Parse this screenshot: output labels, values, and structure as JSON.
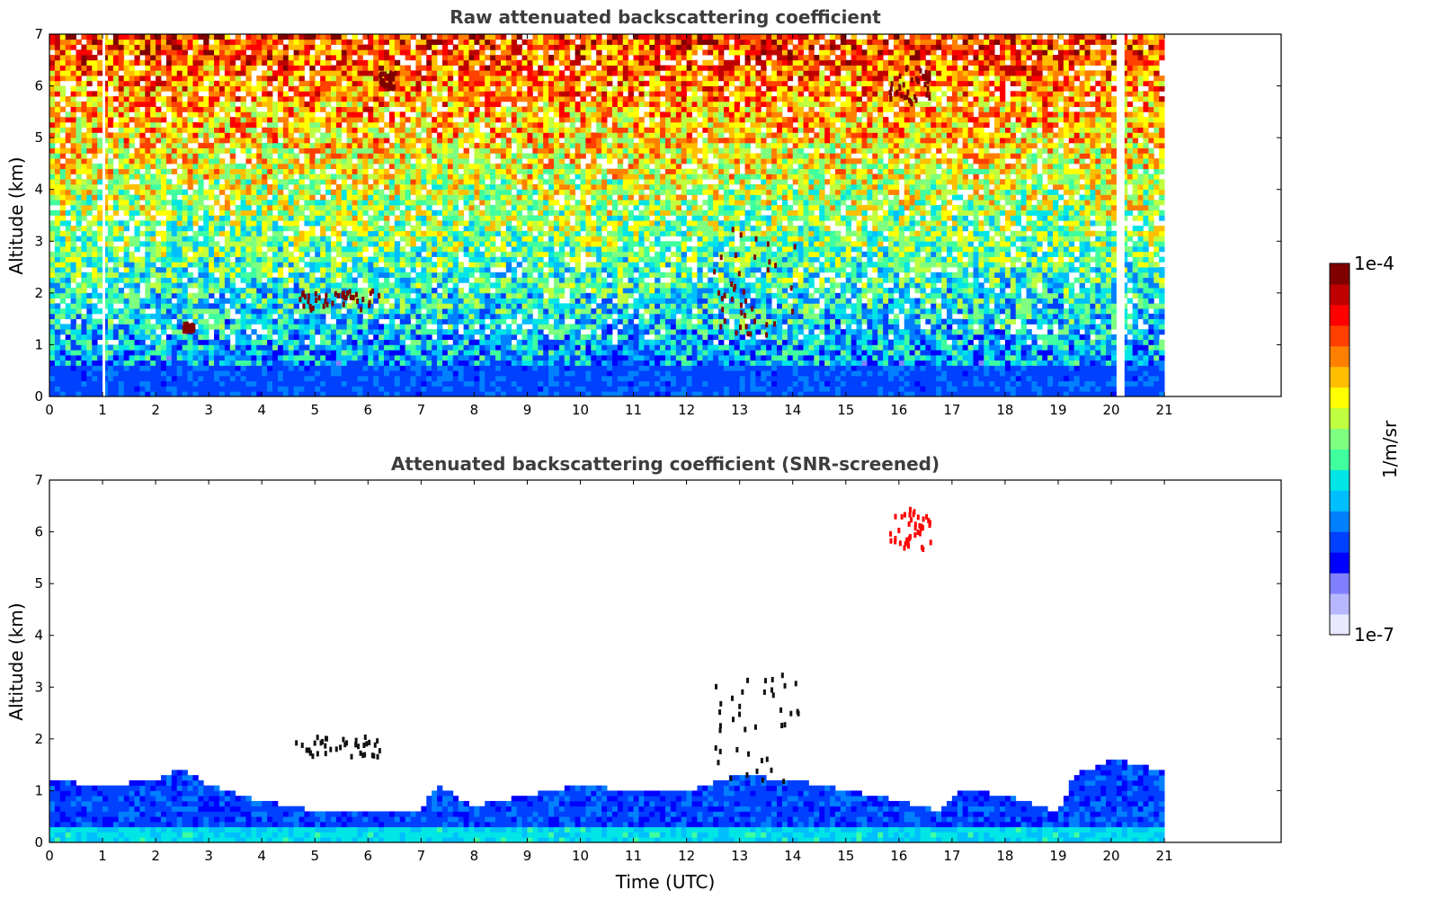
{
  "chart_data": [
    {
      "type": "heatmap",
      "title": "Raw attenuated backscattering coefficient",
      "xlabel": "",
      "ylabel": "Altitude (km)",
      "xlim": [
        0,
        23.2
      ],
      "ylim": [
        0,
        7
      ],
      "xticks": [
        "0",
        "1",
        "2",
        "3",
        "4",
        "5",
        "6",
        "7",
        "8",
        "9",
        "10",
        "11",
        "12",
        "13",
        "14",
        "15",
        "16",
        "17",
        "18",
        "19",
        "20",
        "21"
      ],
      "yticks": [
        "0",
        "1",
        "2",
        "3",
        "4",
        "5",
        "6",
        "7"
      ],
      "data_extent_hours": 21,
      "features": [
        {
          "x0": 4.6,
          "x1": 6.2,
          "y0": 1.7,
          "y1": 2.1,
          "level": 1.0
        },
        {
          "x0": 2.5,
          "x1": 2.7,
          "y0": 1.3,
          "y1": 1.45,
          "level": 1.0
        },
        {
          "x0": 12.5,
          "x1": 14.1,
          "y0": 1.2,
          "y1": 3.3,
          "level": 1.0
        },
        {
          "x0": 15.8,
          "x1": 16.6,
          "y0": 5.7,
          "y1": 6.5,
          "level": 0.95
        },
        {
          "x0": 6.2,
          "x1": 6.5,
          "y0": 6.0,
          "y1": 6.3,
          "level": 0.95
        }
      ],
      "gaps": [
        {
          "x0": 1.0,
          "x1": 1.05
        },
        {
          "x0": 20.1,
          "x1": 20.25
        }
      ]
    },
    {
      "type": "heatmap",
      "title": "Attenuated backscattering coefficient (SNR-screened)",
      "xlabel": "Time (UTC)",
      "ylabel": "Altitude (km)",
      "xlim": [
        0,
        23.2
      ],
      "ylim": [
        0,
        7
      ],
      "xticks": [
        "0",
        "1",
        "2",
        "3",
        "4",
        "5",
        "6",
        "7",
        "8",
        "9",
        "10",
        "11",
        "12",
        "13",
        "14",
        "15",
        "16",
        "17",
        "18",
        "19",
        "20",
        "21"
      ],
      "yticks": [
        "0",
        "1",
        "2",
        "3",
        "4",
        "5",
        "6",
        "7"
      ],
      "data_extent_hours": 21,
      "boundary_layer_top_km": [
        {
          "x": 0,
          "y": 1.2
        },
        {
          "x": 1,
          "y": 1.1
        },
        {
          "x": 2,
          "y": 1.2
        },
        {
          "x": 2.5,
          "y": 1.45
        },
        {
          "x": 3,
          "y": 1.1
        },
        {
          "x": 4,
          "y": 0.8
        },
        {
          "x": 5,
          "y": 0.6
        },
        {
          "x": 6,
          "y": 0.6
        },
        {
          "x": 7,
          "y": 0.6
        },
        {
          "x": 7.3,
          "y": 1.1
        },
        {
          "x": 8,
          "y": 0.7
        },
        {
          "x": 9,
          "y": 0.9
        },
        {
          "x": 10,
          "y": 1.1
        },
        {
          "x": 11,
          "y": 1.0
        },
        {
          "x": 12,
          "y": 1.0
        },
        {
          "x": 13,
          "y": 1.3
        },
        {
          "x": 14,
          "y": 1.2
        },
        {
          "x": 15,
          "y": 1.0
        },
        {
          "x": 16,
          "y": 0.8
        },
        {
          "x": 16.8,
          "y": 0.6
        },
        {
          "x": 17.2,
          "y": 1.05
        },
        {
          "x": 18,
          "y": 0.9
        },
        {
          "x": 19,
          "y": 0.6
        },
        {
          "x": 19.3,
          "y": 1.3
        },
        {
          "x": 20,
          "y": 1.6
        },
        {
          "x": 21,
          "y": 1.4
        }
      ],
      "features": [
        {
          "x0": 4.6,
          "x1": 6.2,
          "y0": 1.7,
          "y1": 2.1,
          "level": 1.0
        },
        {
          "x0": 12.5,
          "x1": 14.1,
          "y0": 1.2,
          "y1": 3.3,
          "level": 1.0
        },
        {
          "x0": 15.8,
          "x1": 16.6,
          "y0": 5.7,
          "y1": 6.5,
          "level": 0.9
        }
      ]
    }
  ],
  "colorbar": {
    "label": "1/m/sr",
    "max_label": "1e-4",
    "min_label": "1e-7",
    "colors": [
      "#e8e8ff",
      "#b7b7ff",
      "#8080ff",
      "#0000ff",
      "#0040ff",
      "#0080ff",
      "#00bfff",
      "#00e5e5",
      "#3fff9f",
      "#7fff7f",
      "#bfff3f",
      "#ffff00",
      "#ffbf00",
      "#ff8000",
      "#ff4000",
      "#ff0000",
      "#bf0000",
      "#800000"
    ]
  }
}
